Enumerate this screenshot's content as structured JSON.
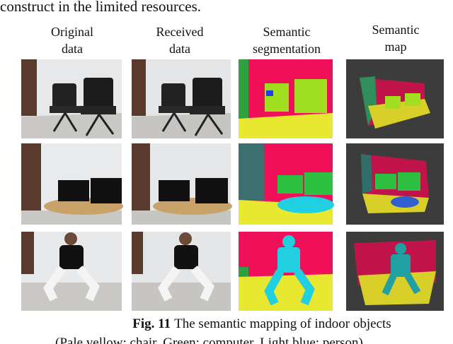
{
  "body_text": "construct in the limited resources.",
  "figure": {
    "columns": [
      [
        "Original",
        "data"
      ],
      [
        "Received",
        "data"
      ],
      [
        "Semantic",
        "segmentation"
      ],
      [
        "Semantic",
        "map"
      ]
    ],
    "caption": {
      "label": "Fig. 11",
      "text": "The semantic mapping of indoor objects"
    },
    "legend_note": "(Pale yellow: chair, Green: computer, Light blue: person)"
  }
}
